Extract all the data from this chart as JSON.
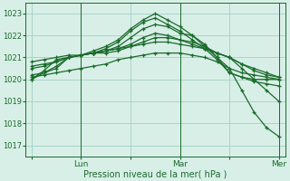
{
  "bg_color": "#d8efe8",
  "grid_color": "#aad4c8",
  "line_color": "#1a6b2a",
  "marker_color": "#1a6b2a",
  "xlabel": "Pression niveau de la mer( hPa )",
  "ylim": [
    1016.5,
    1023.5
  ],
  "yticks": [
    1017,
    1018,
    1019,
    1020,
    1021,
    1022,
    1023
  ],
  "xtick_labels": [
    "",
    "Lun",
    "",
    "Mar",
    "",
    "Mer"
  ],
  "xtick_positions": [
    0,
    24,
    48,
    72,
    96,
    120
  ],
  "series": [
    {
      "x": [
        0,
        6,
        12,
        18,
        24,
        30,
        36,
        42,
        48,
        54,
        60,
        66,
        72,
        78,
        84,
        90,
        96,
        102,
        108,
        114,
        120
      ],
      "y": [
        1020.0,
        1020.4,
        1020.9,
        1021.0,
        1021.1,
        1021.2,
        1021.3,
        1021.4,
        1021.5,
        1021.6,
        1021.7,
        1021.7,
        1021.6,
        1021.5,
        1021.4,
        1021.2,
        1021.0,
        1020.5,
        1020.0,
        1019.5,
        1019.0
      ]
    },
    {
      "x": [
        0,
        6,
        12,
        18,
        24,
        30,
        36,
        42,
        48,
        54,
        60,
        66,
        72,
        78,
        84,
        90,
        96,
        102,
        108,
        114,
        120
      ],
      "y": [
        1020.5,
        1020.6,
        1020.8,
        1021.0,
        1021.1,
        1021.2,
        1021.3,
        1021.5,
        1021.9,
        1022.3,
        1022.5,
        1022.4,
        1022.1,
        1022.0,
        1021.6,
        1021.0,
        1020.5,
        1020.3,
        1020.2,
        1020.1,
        1020.0
      ]
    },
    {
      "x": [
        0,
        6,
        12,
        18,
        24,
        30,
        36,
        42,
        48,
        54,
        60,
        66,
        72,
        78,
        84,
        90,
        96,
        102,
        108,
        114,
        120
      ],
      "y": [
        1020.0,
        1020.3,
        1020.6,
        1021.0,
        1021.1,
        1021.2,
        1021.4,
        1021.7,
        1022.2,
        1022.6,
        1022.8,
        1022.5,
        1022.2,
        1021.8,
        1021.4,
        1020.9,
        1020.3,
        1020.1,
        1020.0,
        1020.0,
        1020.0
      ]
    },
    {
      "x": [
        0,
        6,
        12,
        18,
        24,
        30,
        36,
        42,
        48,
        54,
        60,
        66,
        72,
        78,
        84,
        90,
        96,
        102,
        108,
        114,
        120
      ],
      "y": [
        1020.6,
        1020.7,
        1020.8,
        1021.0,
        1021.1,
        1021.2,
        1021.3,
        1021.4,
        1021.6,
        1021.9,
        1022.1,
        1022.0,
        1021.8,
        1021.7,
        1021.5,
        1021.2,
        1021.0,
        1020.7,
        1020.4,
        1020.2,
        1020.1
      ]
    },
    {
      "x": [
        0,
        6,
        12,
        18,
        24,
        30,
        36,
        42,
        48,
        54,
        60,
        66,
        72,
        78,
        84,
        90,
        96,
        102,
        108,
        114,
        120
      ],
      "y": [
        1020.8,
        1020.9,
        1021.0,
        1021.1,
        1021.1,
        1021.2,
        1021.2,
        1021.3,
        1021.5,
        1021.7,
        1021.9,
        1021.9,
        1021.8,
        1021.6,
        1021.4,
        1021.2,
        1021.0,
        1020.7,
        1020.5,
        1020.3,
        1020.1
      ]
    },
    {
      "x": [
        0,
        6,
        12,
        18,
        24,
        30,
        36,
        42,
        48,
        54,
        60,
        66,
        72,
        78,
        84,
        90,
        96,
        102,
        108,
        114,
        120
      ],
      "y": [
        1020.2,
        1020.3,
        1020.5,
        1021.0,
        1021.1,
        1021.3,
        1021.5,
        1021.8,
        1022.3,
        1022.7,
        1023.0,
        1022.7,
        1022.4,
        1022.0,
        1021.5,
        1021.0,
        1020.3,
        1020.1,
        1019.9,
        1019.8,
        1019.7
      ]
    },
    {
      "x": [
        0,
        6,
        12,
        18,
        24,
        30,
        36,
        42,
        48,
        54,
        60,
        66,
        72,
        78,
        84,
        90,
        96,
        102,
        108,
        114,
        120
      ],
      "y": [
        1020.1,
        1020.2,
        1020.3,
        1020.4,
        1020.5,
        1020.6,
        1020.7,
        1020.9,
        1021.0,
        1021.1,
        1021.2,
        1021.2,
        1021.2,
        1021.1,
        1021.0,
        1020.8,
        1020.5,
        1019.5,
        1018.5,
        1017.8,
        1017.4
      ]
    }
  ]
}
